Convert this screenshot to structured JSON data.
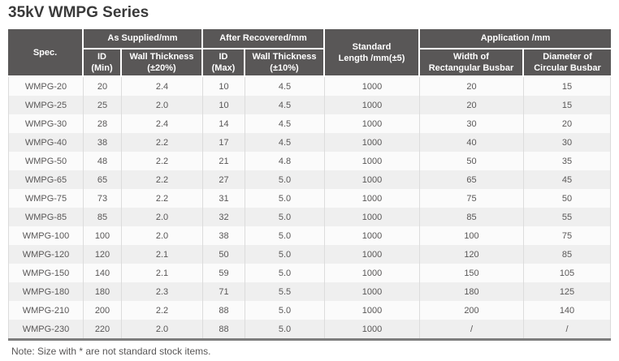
{
  "title": "35kV WMPG Series",
  "note": "Note: Size with * are not standard stock items.",
  "colors": {
    "header_bg": "#595757",
    "header_text": "#ffffff",
    "row_stripe_bg": "#efefef",
    "row_plain_bg": "#fbfbfb",
    "body_text": "#595757",
    "bottom_rule": "#7d7d7d",
    "column_divider": "#dcdcdc"
  },
  "table": {
    "columns": {
      "spec": "Spec.",
      "as_supplied_group": "As Supplied/mm",
      "after_recovered_group": "After Recovered/mm",
      "standard_length": "Standard\nLength /mm(±5)",
      "application_group": "Application /mm",
      "id_min": "ID\n(Min)",
      "wall_thickness_20": "Wall Thickness\n(±20%)",
      "id_max": "ID\n(Max)",
      "wall_thickness_10": "Wall Thickness\n(±10%)",
      "width_rectangular_busbar": "Width of\nRectangular Busbar",
      "diameter_circular_busbar": "Diameter of\nCircular Busbar"
    },
    "rows": [
      [
        "WMPG-20",
        "20",
        "2.4",
        "10",
        "4.5",
        "1000",
        "20",
        "15"
      ],
      [
        "WMPG-25",
        "25",
        "2.0",
        "10",
        "4.5",
        "1000",
        "20",
        "15"
      ],
      [
        "WMPG-30",
        "28",
        "2.4",
        "14",
        "4.5",
        "1000",
        "30",
        "20"
      ],
      [
        "WMPG-40",
        "38",
        "2.2",
        "17",
        "4.5",
        "1000",
        "40",
        "30"
      ],
      [
        "WMPG-50",
        "48",
        "2.2",
        "21",
        "4.8",
        "1000",
        "50",
        "35"
      ],
      [
        "WMPG-65",
        "65",
        "2.2",
        "27",
        "5.0",
        "1000",
        "65",
        "45"
      ],
      [
        "WMPG-75",
        "73",
        "2.2",
        "31",
        "5.0",
        "1000",
        "75",
        "50"
      ],
      [
        "WMPG-85",
        "85",
        "2.0",
        "32",
        "5.0",
        "1000",
        "85",
        "55"
      ],
      [
        "WMPG-100",
        "100",
        "2.0",
        "38",
        "5.0",
        "1000",
        "100",
        "75"
      ],
      [
        "WMPG-120",
        "120",
        "2.1",
        "50",
        "5.0",
        "1000",
        "120",
        "85"
      ],
      [
        "WMPG-150",
        "140",
        "2.1",
        "59",
        "5.0",
        "1000",
        "150",
        "105"
      ],
      [
        "WMPG-180",
        "180",
        "2.3",
        "71",
        "5.5",
        "1000",
        "180",
        "125"
      ],
      [
        "WMPG-210",
        "200",
        "2.2",
        "88",
        "5.0",
        "1000",
        "200",
        "140"
      ],
      [
        "WMPG-230",
        "220",
        "2.0",
        "88",
        "5.0",
        "1000",
        "/",
        "/"
      ]
    ]
  }
}
